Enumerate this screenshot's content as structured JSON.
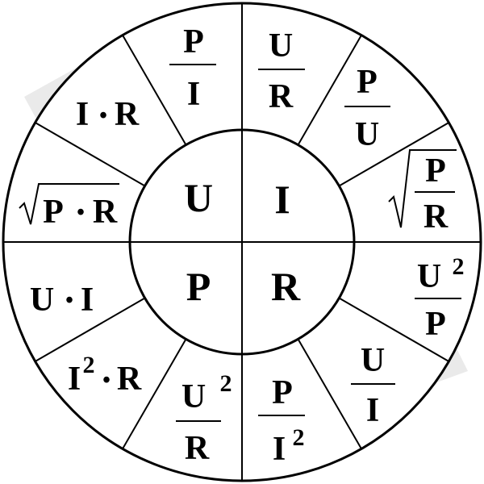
{
  "center": {
    "U": "U",
    "I": "I",
    "P": "P",
    "R": "R"
  },
  "formulas": {
    "u_p_over_i": {
      "num": "P",
      "den": "I"
    },
    "u_i_times_r": {
      "a": "I",
      "dot": "•",
      "b": "R"
    },
    "u_sqrt_pr": {
      "radical": "√",
      "a": "P",
      "dot": "•",
      "b": "R"
    },
    "i_u_over_r": {
      "num": "U",
      "den": "R"
    },
    "i_p_over_u": {
      "num": "P",
      "den": "U"
    },
    "i_sqrt_p_over_r": {
      "radical": "√",
      "num": "P",
      "den": "R"
    },
    "r_u2_over_p": {
      "num": "U",
      "exp": "2",
      "den": "P"
    },
    "r_u_over_i": {
      "num": "U",
      "den": "I"
    },
    "r_p_over_i2": {
      "num": "P",
      "den": "I",
      "exp": "2"
    },
    "p_u2_over_r": {
      "num": "U",
      "exp": "2",
      "den": "R"
    },
    "p_i2_times_r": {
      "a": "I",
      "exp": "2",
      "dot": "•",
      "b": "R"
    },
    "p_u_times_i": {
      "a": "U",
      "dot": "•",
      "b": "I"
    }
  }
}
